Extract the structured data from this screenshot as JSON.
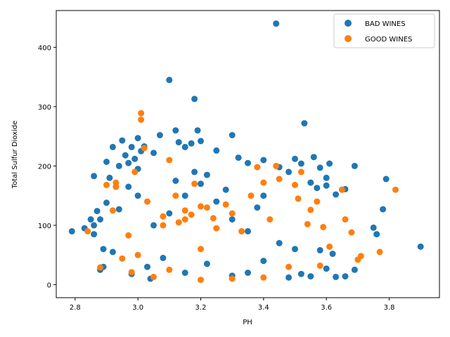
{
  "chart_data": {
    "type": "scatter",
    "title": "",
    "xlabel": "PH",
    "ylabel": "Total Sulfur Dioxide",
    "xlim": [
      2.74,
      3.96
    ],
    "ylim": [
      -22,
      462
    ],
    "xticks": [
      2.8,
      3.0,
      3.2,
      3.4,
      3.6,
      3.8
    ],
    "xtick_labels": [
      "2.8",
      "3.0",
      "3.2",
      "3.4",
      "3.6",
      "3.8"
    ],
    "yticks": [
      0,
      100,
      200,
      300,
      400
    ],
    "ytick_labels": [
      "0",
      "100",
      "200",
      "300",
      "400"
    ],
    "grid": false,
    "legend_position": "top-right",
    "series": [
      {
        "name": "BAD WINES",
        "color": "#1f77b4",
        "points": [
          [
            2.79,
            90
          ],
          [
            2.83,
            95
          ],
          [
            2.85,
            110
          ],
          [
            2.86,
            100
          ],
          [
            2.86,
            85
          ],
          [
            2.86,
            183
          ],
          [
            2.87,
            124
          ],
          [
            2.88,
            110
          ],
          [
            2.88,
            25
          ],
          [
            2.89,
            30
          ],
          [
            2.89,
            60
          ],
          [
            2.9,
            138
          ],
          [
            2.9,
            207
          ],
          [
            2.91,
            180
          ],
          [
            2.92,
            232
          ],
          [
            2.92,
            55
          ],
          [
            2.93,
            165
          ],
          [
            2.94,
            200
          ],
          [
            2.94,
            127
          ],
          [
            2.95,
            243
          ],
          [
            2.96,
            218
          ],
          [
            2.97,
            205
          ],
          [
            2.97,
            165
          ],
          [
            2.98,
            232
          ],
          [
            2.99,
            212
          ],
          [
            3.0,
            247
          ],
          [
            3.0,
            195
          ],
          [
            3.0,
            150
          ],
          [
            3.01,
            225
          ],
          [
            3.02,
            233
          ],
          [
            3.03,
            30
          ],
          [
            3.04,
            10
          ],
          [
            3.05,
            222
          ],
          [
            3.07,
            252
          ],
          [
            3.1,
            345
          ],
          [
            3.12,
            260
          ],
          [
            3.13,
            240
          ],
          [
            3.15,
            232
          ],
          [
            3.17,
            238
          ],
          [
            3.18,
            313
          ],
          [
            3.19,
            260
          ],
          [
            3.2,
            242
          ],
          [
            3.25,
            226
          ],
          [
            3.3,
            252
          ],
          [
            3.32,
            214
          ],
          [
            3.35,
            205
          ],
          [
            3.4,
            210
          ],
          [
            3.44,
            440
          ],
          [
            3.45,
            198
          ],
          [
            3.48,
            190
          ],
          [
            3.5,
            212
          ],
          [
            3.52,
            204
          ],
          [
            3.53,
            272
          ],
          [
            3.55,
            172
          ],
          [
            3.56,
            215
          ],
          [
            3.57,
            163
          ],
          [
            3.58,
            197
          ],
          [
            3.6,
            180
          ],
          [
            3.6,
            167
          ],
          [
            3.61,
            204
          ],
          [
            3.63,
            152
          ],
          [
            3.65,
            160
          ],
          [
            3.66,
            161
          ],
          [
            3.69,
            200
          ],
          [
            3.75,
            96
          ],
          [
            3.76,
            85
          ],
          [
            3.78,
            127
          ],
          [
            3.79,
            178
          ],
          [
            3.9,
            64
          ],
          [
            3.58,
            58
          ],
          [
            3.6,
            27
          ],
          [
            3.62,
            52
          ],
          [
            3.63,
            13
          ],
          [
            3.66,
            14
          ],
          [
            3.69,
            25
          ],
          [
            3.55,
            14
          ],
          [
            3.52,
            18
          ],
          [
            3.48,
            12
          ],
          [
            3.4,
            40
          ],
          [
            3.35,
            20
          ],
          [
            3.3,
            15
          ],
          [
            3.22,
            35
          ],
          [
            3.15,
            20
          ],
          [
            3.08,
            45
          ],
          [
            2.98,
            18
          ],
          [
            3.05,
            100
          ],
          [
            3.1,
            120
          ],
          [
            3.15,
            150
          ],
          [
            3.2,
            170
          ],
          [
            3.25,
            140
          ],
          [
            3.3,
            110
          ],
          [
            3.35,
            90
          ],
          [
            3.4,
            150
          ],
          [
            3.45,
            70
          ],
          [
            3.5,
            60
          ],
          [
            3.18,
            190
          ],
          [
            3.22,
            185
          ],
          [
            3.12,
            175
          ],
          [
            3.28,
            160
          ],
          [
            3.38,
            130
          ]
        ]
      },
      {
        "name": "GOOD WINES",
        "color": "#ff7f0e",
        "points": [
          [
            2.84,
            90
          ],
          [
            2.88,
            29
          ],
          [
            2.9,
            168
          ],
          [
            2.92,
            125
          ],
          [
            2.93,
            172
          ],
          [
            2.93,
            165
          ],
          [
            2.95,
            44
          ],
          [
            2.97,
            83
          ],
          [
            2.98,
            21
          ],
          [
            2.99,
            190
          ],
          [
            3.01,
            289
          ],
          [
            3.01,
            278
          ],
          [
            3.02,
            230
          ],
          [
            3.03,
            140
          ],
          [
            3.05,
            13
          ],
          [
            3.08,
            100
          ],
          [
            3.1,
            210
          ],
          [
            3.12,
            150
          ],
          [
            3.15,
            110
          ],
          [
            3.18,
            170
          ],
          [
            3.2,
            60
          ],
          [
            3.22,
            130
          ],
          [
            3.25,
            95
          ],
          [
            3.28,
            135
          ],
          [
            3.3,
            120
          ],
          [
            3.33,
            90
          ],
          [
            3.36,
            150
          ],
          [
            3.38,
            198
          ],
          [
            3.4,
            172
          ],
          [
            3.42,
            110
          ],
          [
            3.44,
            200
          ],
          [
            3.45,
            178
          ],
          [
            3.48,
            30
          ],
          [
            3.5,
            168
          ],
          [
            3.51,
            145
          ],
          [
            3.52,
            190
          ],
          [
            3.54,
            102
          ],
          [
            3.55,
            126
          ],
          [
            3.57,
            140
          ],
          [
            3.58,
            32
          ],
          [
            3.59,
            97
          ],
          [
            3.61,
            64
          ],
          [
            3.65,
            160
          ],
          [
            3.66,
            110
          ],
          [
            3.68,
            88
          ],
          [
            3.7,
            42
          ],
          [
            3.71,
            48
          ],
          [
            3.77,
            55
          ],
          [
            3.82,
            160
          ],
          [
            3.2,
            8
          ],
          [
            3.3,
            10
          ],
          [
            3.4,
            12
          ],
          [
            3.1,
            25
          ],
          [
            3.0,
            50
          ],
          [
            3.15,
            125
          ],
          [
            3.17,
            118
          ],
          [
            3.2,
            132
          ],
          [
            3.13,
            105
          ],
          [
            3.24,
            112
          ],
          [
            3.08,
            115
          ]
        ]
      }
    ]
  }
}
